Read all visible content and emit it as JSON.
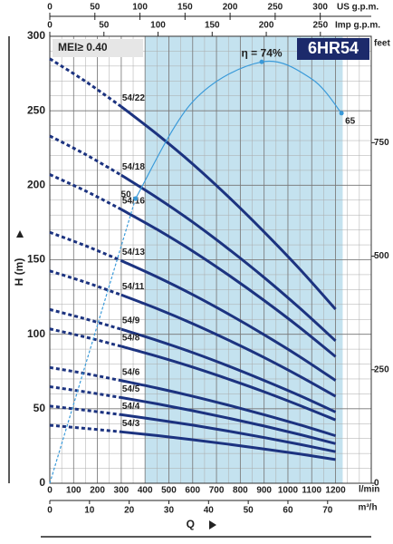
{
  "chart_data": {
    "type": "line",
    "title": "6HR54",
    "mei_label": "MEI≥ 0.40",
    "y_label": "H (m)",
    "x_label": "Q",
    "x_unit": "l/min",
    "color": "#1c3380",
    "x": [
      0,
      150,
      300,
      450,
      600,
      750,
      900,
      1050,
      1200
    ],
    "xlim": [
      0,
      1350
    ],
    "xticks": [
      0,
      100,
      200,
      300,
      400,
      500,
      600,
      700,
      800,
      900,
      1000,
      1100,
      1200
    ],
    "ylim": [
      0,
      300
    ],
    "yticks": [
      0,
      50,
      100,
      150,
      200,
      250,
      300
    ],
    "grid_step": {
      "x": 50,
      "y": 10
    },
    "dotted_until": 300,
    "recommended_range": [
      400,
      1230
    ],
    "series": [
      {
        "name": "54/22",
        "values": [
          284.9,
          269.7,
          252.8,
          234.3,
          214.3,
          192.3,
          168.7,
          143.7,
          116.8
        ]
      },
      {
        "name": "54/18",
        "values": [
          233.1,
          220.7,
          206.8,
          191.7,
          175.3,
          157.3,
          138.1,
          117.5,
          95.6
        ]
      },
      {
        "name": "54/16",
        "values": [
          207.2,
          196.2,
          183.8,
          170.4,
          155.8,
          139.8,
          122.7,
          104.5,
          85.0
        ]
      },
      {
        "name": "54/13",
        "values": [
          168.4,
          159.4,
          149.4,
          138.5,
          126.6,
          113.6,
          99.7,
          84.9,
          69.0
        ]
      },
      {
        "name": "54/11",
        "values": [
          142.5,
          134.9,
          126.4,
          117.2,
          107.1,
          96.1,
          84.4,
          71.8,
          58.4
        ]
      },
      {
        "name": "54/9",
        "values": [
          116.6,
          110.3,
          103.4,
          95.9,
          87.7,
          78.7,
          69.0,
          58.8,
          47.8
        ]
      },
      {
        "name": "54/8",
        "values": [
          103.6,
          98.1,
          91.9,
          85.2,
          77.9,
          69.9,
          61.4,
          52.2,
          42.5
        ]
      },
      {
        "name": "54/6",
        "values": [
          77.7,
          73.6,
          68.9,
          63.9,
          58.4,
          52.4,
          46.0,
          39.2,
          31.9
        ]
      },
      {
        "name": "54/5",
        "values": [
          64.8,
          61.3,
          57.5,
          53.3,
          48.7,
          43.7,
          38.4,
          32.7,
          26.6
        ]
      },
      {
        "name": "54/4",
        "values": [
          51.8,
          49.0,
          46.0,
          42.6,
          39.0,
          35.0,
          30.7,
          26.1,
          21.2
        ]
      },
      {
        "name": "54/3",
        "values": [
          38.9,
          36.8,
          34.5,
          32.0,
          29.2,
          26.2,
          23.0,
          19.6,
          15.9
        ]
      }
    ],
    "efficiency": {
      "color": "#3a9ad9",
      "x": [
        0,
        360,
        600,
        890,
        1100,
        1225
      ],
      "values": [
        0,
        50,
        67,
        74,
        71,
        65
      ],
      "peak_label": "η = 74%"
    },
    "m3h_axis": {
      "unit": "m³/h",
      "lim": [
        0,
        81
      ],
      "ticks": [
        0,
        10,
        20,
        30,
        40,
        50,
        60,
        70
      ]
    },
    "us_gpm_axis": {
      "unit": "US g.p.m.",
      "lim": [
        0,
        356.6
      ],
      "ticks": [
        0,
        50,
        100,
        150,
        200,
        250,
        300
      ]
    },
    "imp_gpm_axis": {
      "unit": "Imp g.p.m.",
      "lim": [
        0,
        297
      ],
      "ticks": [
        0,
        50,
        100,
        150,
        200,
        250
      ]
    },
    "feet_axis": {
      "unit": "feet",
      "lim": [
        0,
        984.3
      ],
      "ticks": [
        0,
        250,
        500,
        750
      ]
    }
  }
}
